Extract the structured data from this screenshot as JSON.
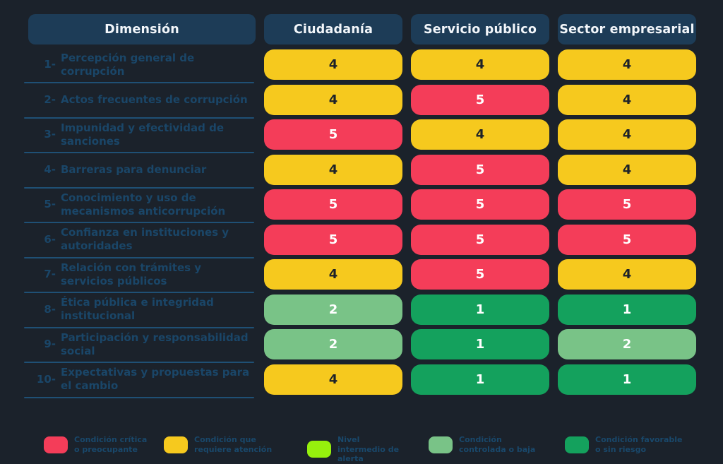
{
  "table": {
    "header": {
      "dimension_label": "Dimensión",
      "columns": [
        "Ciudadanía",
        "Servicio público",
        "Sector empresarial"
      ]
    },
    "rows": [
      {
        "num": "1-",
        "label": "Percepción general de corrupción",
        "values": [
          4,
          4,
          4
        ]
      },
      {
        "num": "2-",
        "label": "Actos frecuentes de corrupción",
        "values": [
          4,
          5,
          4
        ]
      },
      {
        "num": "3-",
        "label": "Impunidad y efectividad de sanciones",
        "values": [
          5,
          4,
          4
        ]
      },
      {
        "num": "4-",
        "label": "Barreras para denunciar",
        "values": [
          4,
          5,
          4
        ]
      },
      {
        "num": "5-",
        "label": "Conocimiento y uso de mecanismos anticorrupción",
        "values": [
          5,
          5,
          5
        ]
      },
      {
        "num": "6-",
        "label": "Confianza en instituciones y autoridades",
        "values": [
          5,
          5,
          5
        ]
      },
      {
        "num": "7-",
        "label": "Relación con trámites y servicios públicos",
        "values": [
          4,
          5,
          4
        ]
      },
      {
        "num": "8-",
        "label": "Ética pública e integridad institucional",
        "values": [
          2,
          1,
          1
        ]
      },
      {
        "num": "9-",
        "label": "Participación y responsabilidad social",
        "values": [
          2,
          1,
          2
        ]
      },
      {
        "num": "10-",
        "label": "Expectativas y propuestas para el cambio",
        "values": [
          4,
          1,
          1
        ]
      }
    ]
  },
  "severity": {
    "by_value": {
      "1": "favorable",
      "2": "controlled",
      "3": "intermediate",
      "4": "attention",
      "5": "critical"
    },
    "colors": {
      "critical": "#f43d59",
      "attention": "#f6c91e",
      "intermediate": "#96f00d",
      "controlled": "#79c387",
      "favorable": "#14a15d"
    },
    "text_colors": {
      "critical": "#ffffff",
      "attention": "#1d2229",
      "intermediate": "#1d2229",
      "controlled": "#ffffff",
      "favorable": "#ffffff"
    }
  },
  "legend": {
    "items": [
      {
        "color_key": "critical",
        "label": "Condición crítica o preocupante"
      },
      {
        "color_key": "attention",
        "label": "Condición que requiere atención"
      },
      {
        "color_key": "intermediate",
        "label": "Nivel intermedio de alerta"
      },
      {
        "color_key": "controlled",
        "label": "Condición controlada o baja"
      },
      {
        "color_key": "favorable",
        "label": "Condición favorable o sin riesgo"
      }
    ]
  },
  "chart_data": {
    "type": "heatmap",
    "title": "",
    "row_header": "Dimensión",
    "columns": [
      "Ciudadanía",
      "Servicio público",
      "Sector empresarial"
    ],
    "rows": [
      "Percepción general de corrupción",
      "Actos frecuentes de corrupción",
      "Impunidad y efectividad de sanciones",
      "Barreras para denunciar",
      "Conocimiento y uso de mecanismos anticorrupción",
      "Confianza en instituciones y autoridades",
      "Relación con trámites y servicios públicos",
      "Ética pública e integridad institucional",
      "Participación y responsabilidad social",
      "Expectativas y propuestas para el cambio"
    ],
    "values": [
      [
        4,
        4,
        4
      ],
      [
        4,
        5,
        4
      ],
      [
        5,
        4,
        4
      ],
      [
        4,
        5,
        4
      ],
      [
        5,
        5,
        5
      ],
      [
        5,
        5,
        5
      ],
      [
        4,
        5,
        4
      ],
      [
        2,
        1,
        1
      ],
      [
        2,
        1,
        2
      ],
      [
        4,
        1,
        1
      ]
    ],
    "value_range": [
      1,
      5
    ],
    "scale_legend": {
      "5": "Condición crítica o preocupante",
      "4": "Condición que requiere atención",
      "3": "Nivel intermedio de alerta",
      "2": "Condición controlada o baja",
      "1": "Condición favorable o sin riesgo"
    },
    "legend_position": "bottom"
  }
}
